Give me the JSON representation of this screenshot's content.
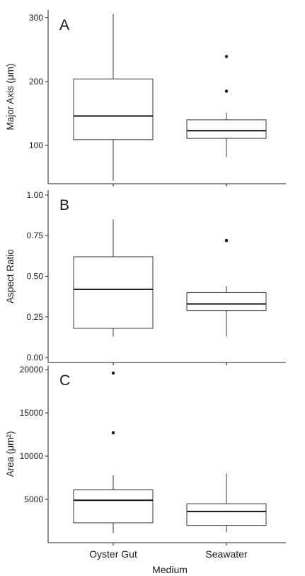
{
  "xlabel": "Medium",
  "categories": [
    "Oyster Gut",
    "Seawater"
  ],
  "chart_data": [
    {
      "type": "box",
      "panel_label": "A",
      "ylabel": "Major Axis (μm)",
      "ylim": [
        40,
        312
      ],
      "yticks": [
        100,
        200,
        300
      ],
      "categories": [
        "Oyster Gut",
        "Seawater"
      ],
      "boxes": [
        {
          "category": "Oyster Gut",
          "whisker_low": 45,
          "q1": 109,
          "median": 146,
          "q3": 204,
          "whisker_high": 306,
          "outliers": []
        },
        {
          "category": "Seawater",
          "whisker_low": 82,
          "q1": 111,
          "median": 123,
          "q3": 140,
          "whisker_high": 151,
          "outliers": [
            185,
            239
          ]
        }
      ]
    },
    {
      "type": "box",
      "panel_label": "B",
      "ylabel": "Aspect Ratio",
      "ylim": [
        -0.03,
        1.03
      ],
      "yticks": [
        0.0,
        0.25,
        0.5,
        0.75,
        1.0
      ],
      "ytick_labels": [
        "0.00",
        "0.25",
        "0.50",
        "0.75",
        "1.00"
      ],
      "categories": [
        "Oyster Gut",
        "Seawater"
      ],
      "boxes": [
        {
          "category": "Oyster Gut",
          "whisker_low": 0.13,
          "q1": 0.18,
          "median": 0.42,
          "q3": 0.62,
          "whisker_high": 0.85,
          "outliers": []
        },
        {
          "category": "Seawater",
          "whisker_low": 0.13,
          "q1": 0.29,
          "median": 0.33,
          "q3": 0.4,
          "whisker_high": 0.44,
          "outliers": [
            0.72
          ]
        }
      ]
    },
    {
      "type": "box",
      "panel_label": "C",
      "ylabel": "Area (μm²)",
      "ylim": [
        0,
        20500
      ],
      "yticks": [
        5000,
        10000,
        15000,
        20000
      ],
      "categories": [
        "Oyster Gut",
        "Seawater"
      ],
      "boxes": [
        {
          "category": "Oyster Gut",
          "whisker_low": 1100,
          "q1": 2300,
          "median": 4900,
          "q3": 6100,
          "whisker_high": 7800,
          "outliers": [
            12700,
            19600
          ]
        },
        {
          "category": "Seawater",
          "whisker_low": 1200,
          "q1": 2000,
          "median": 3600,
          "q3": 4500,
          "whisker_high": 8000,
          "outliers": []
        }
      ]
    }
  ]
}
